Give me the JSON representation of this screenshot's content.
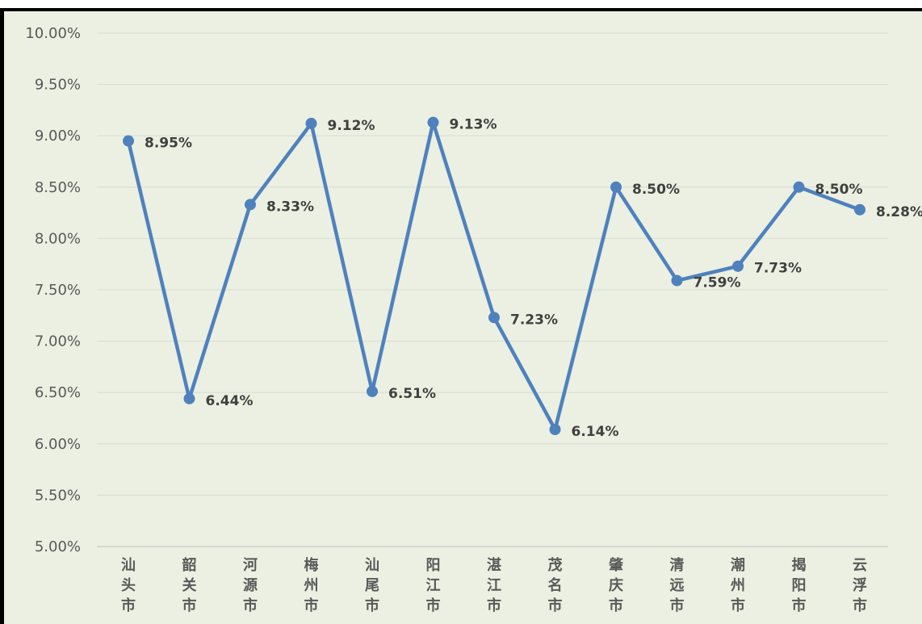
{
  "chart_data": {
    "type": "line",
    "categories": [
      "汕头市",
      "韶关市",
      "河源市",
      "梅州市",
      "汕尾市",
      "阳江市",
      "湛江市",
      "茂名市",
      "肇庆市",
      "清远市",
      "潮州市",
      "揭阳市",
      "云浮市"
    ],
    "values": [
      8.95,
      6.44,
      8.33,
      9.12,
      6.51,
      9.13,
      7.23,
      6.14,
      8.5,
      7.59,
      7.73,
      8.5,
      8.28
    ],
    "data_labels": [
      "8.95%",
      "6.44%",
      "8.33%",
      "9.12%",
      "6.51%",
      "9.13%",
      "7.23%",
      "6.14%",
      "8.50%",
      "7.59%",
      "7.73%",
      "8.50%",
      "8.28%"
    ],
    "ylim": [
      5.0,
      10.0
    ],
    "yticks": [
      5.0,
      5.5,
      6.0,
      6.5,
      7.0,
      7.5,
      8.0,
      8.5,
      9.0,
      9.5,
      10.0
    ],
    "ytick_labels": [
      "5.00%",
      "5.50%",
      "6.00%",
      "6.50%",
      "7.00%",
      "7.50%",
      "8.00%",
      "8.50%",
      "9.00%",
      "9.50%",
      "10.00%"
    ],
    "title": "",
    "xlabel": "",
    "ylabel": "",
    "grid": true,
    "legend": "none"
  },
  "colors": {
    "background": "#ebf0e2",
    "line": "#4f81bd",
    "grid": "#d9dcd2"
  }
}
